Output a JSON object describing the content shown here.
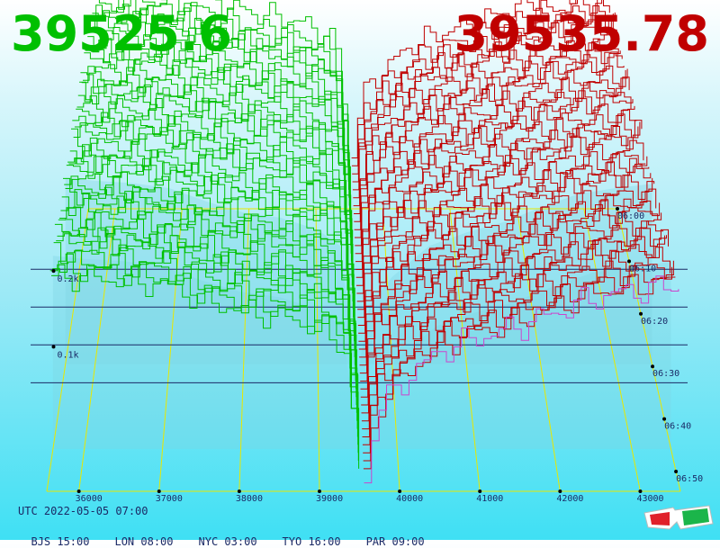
{
  "header": {
    "bid_price": "39525.6",
    "ask_price": "39535.78"
  },
  "footer": {
    "utc_time": "UTC 2022-05-05 07:00",
    "cities": [
      {
        "label": "BJS 15:00"
      },
      {
        "label": "LON 08:00"
      },
      {
        "label": "NYC 03:00"
      },
      {
        "label": "TYO 16:00"
      },
      {
        "label": "PAR 09:00"
      }
    ]
  },
  "icons": {
    "glasses": "3d-glasses-icon"
  },
  "colors": {
    "bid": "#00c000",
    "ask": "#c00000",
    "grid_yellow": "#e8e800",
    "grid_navy": "#1b2a66",
    "axis_text": "#1b2a66"
  },
  "chart_data": {
    "type": "area",
    "title": "",
    "description_note": "",
    "price_axis": {
      "ticks": [
        "36000",
        "37000",
        "38000",
        "39000",
        "40000",
        "41000",
        "42000",
        "43000"
      ],
      "range": [
        35600,
        43500
      ]
    },
    "time_axis": {
      "ticks": [
        "06:00",
        "06:10",
        "06:20",
        "06:30",
        "06:40",
        "06:50"
      ]
    },
    "depth_axis": {
      "ticks": [
        "0.1k",
        "0.2k"
      ],
      "range": [
        0,
        0.3
      ]
    },
    "grid": true,
    "mid_price": 39530,
    "series": [
      {
        "side": "bid",
        "price_points": [
          35600,
          36000,
          36500,
          37000,
          37500,
          38000,
          38500,
          39000,
          39300,
          39500
        ],
        "depth_k": [
          0.252,
          0.248,
          0.245,
          0.238,
          0.22,
          0.205,
          0.198,
          0.182,
          0.16,
          0.0
        ]
      },
      {
        "side": "ask",
        "price_points": [
          39560,
          39700,
          40000,
          40500,
          41000,
          41500,
          42000,
          42500,
          43000,
          43500
        ],
        "depth_k": [
          0.0,
          0.08,
          0.118,
          0.16,
          0.178,
          0.192,
          0.212,
          0.23,
          0.238,
          0.244
        ]
      }
    ],
    "snapshots": 40
  }
}
